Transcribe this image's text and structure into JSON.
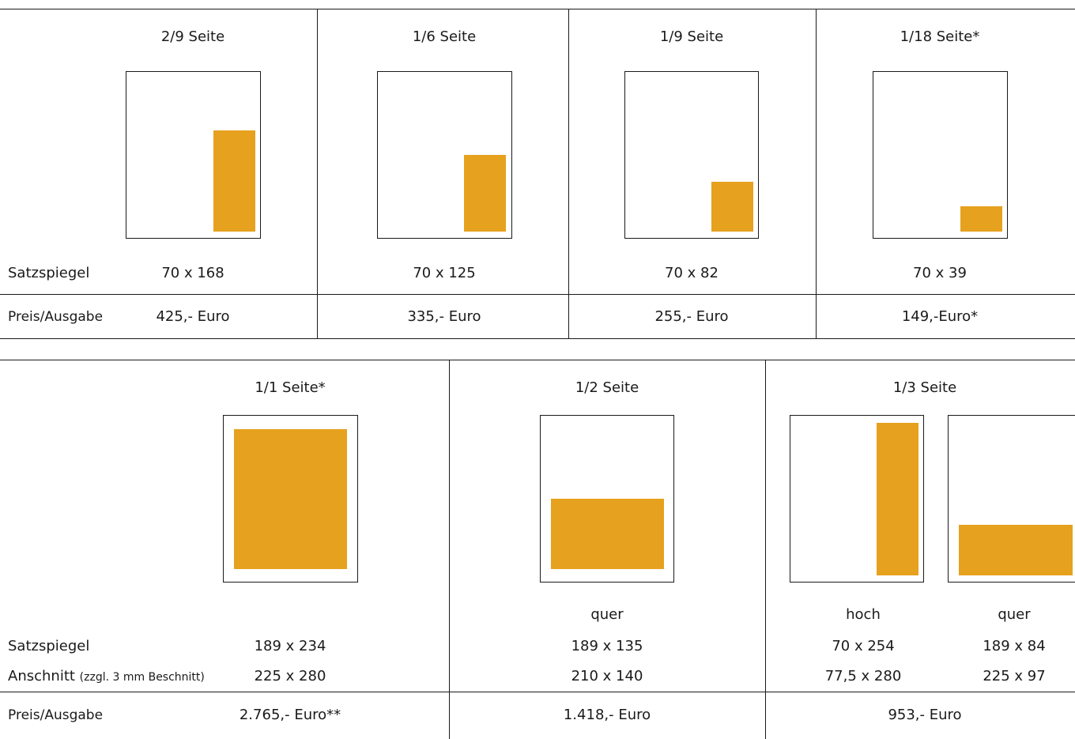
{
  "accent_color": "#E6A11E",
  "top": {
    "row_labels": {
      "satzspiegel": "Satzspiegel",
      "preis": "Preis/Ausgabe"
    },
    "columns": [
      {
        "title": "2/9 Seite",
        "satzspiegel": "70 x 168",
        "preis": "425,- Euro"
      },
      {
        "title": "1/6 Seite",
        "satzspiegel": "70 x 125",
        "preis": "335,- Euro"
      },
      {
        "title": "1/9 Seite",
        "satzspiegel": "70 x 82",
        "preis": "255,- Euro"
      },
      {
        "title": "1/18 Seite*",
        "satzspiegel": "70 x 39",
        "preis": "149,-Euro*"
      }
    ]
  },
  "bottom": {
    "row_labels": {
      "satzspiegel": "Satzspiegel",
      "anschnitt": "Anschnitt",
      "anschnitt_note": "(zzgl. 3 mm Beschnitt)",
      "preis": "Preis/Ausgabe"
    },
    "full": {
      "title": "1/1 Seite*",
      "satzspiegel": "189 x 234",
      "anschnitt": "225 x 280",
      "preis": "2.765,- Euro**"
    },
    "half": {
      "title": "1/2 Seite",
      "orientation": "quer",
      "satzspiegel": "189 x 135",
      "anschnitt": "210 x 140",
      "preis": "1.418,- Euro"
    },
    "third": {
      "title": "1/3 Seite",
      "hoch": {
        "orientation": "hoch",
        "satzspiegel": "70 x 254",
        "anschnitt": "77,5 x 280"
      },
      "quer": {
        "orientation": "quer",
        "satzspiegel": "189 x 84",
        "anschnitt": "225 x 97"
      },
      "preis": "953,- Euro"
    }
  }
}
